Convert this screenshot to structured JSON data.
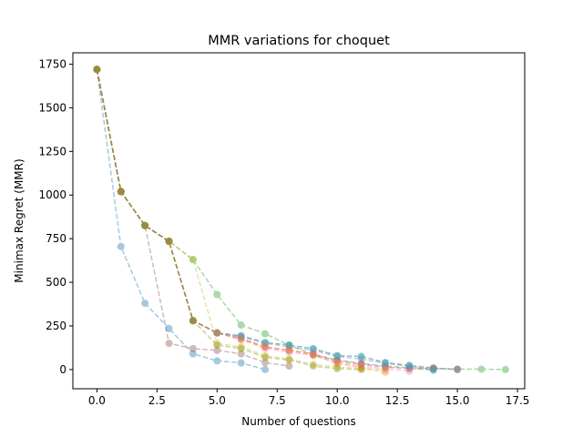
{
  "chart_data": {
    "type": "line",
    "title": "MMR variations for choquet",
    "xlabel": "Number of questions",
    "ylabel": "Minimax Regret (MMR)",
    "xlim": [
      -1,
      17.8
    ],
    "ylim": [
      -110,
      1815
    ],
    "xticks": [
      0.0,
      2.5,
      5.0,
      7.5,
      10.0,
      12.5,
      15.0,
      17.5
    ],
    "xtick_labels": [
      "0.0",
      "2.5",
      "5.0",
      "7.5",
      "10.0",
      "12.5",
      "15.0",
      "17.5"
    ],
    "yticks": [
      0,
      250,
      500,
      750,
      1000,
      1250,
      1500,
      1750
    ],
    "ytick_labels": [
      "0",
      "250",
      "500",
      "750",
      "1000",
      "1250",
      "1500",
      "1750"
    ],
    "grid": false,
    "line_style": "dashed",
    "marker": "circle",
    "alpha": 0.4,
    "series": [
      {
        "color": "#1f77b4",
        "x": [
          0,
          1,
          2,
          3,
          4,
          5,
          6,
          7
        ],
        "y": [
          1720,
          705,
          380,
          235,
          90,
          50,
          38,
          0
        ]
      },
      {
        "color": "#8c564b",
        "x": [
          0,
          1,
          2,
          3,
          4,
          5,
          6,
          7,
          8
        ],
        "y": [
          1720,
          1020,
          825,
          150,
          120,
          110,
          90,
          40,
          20
        ]
      },
      {
        "color": "#2ca02c",
        "x": [
          0,
          1,
          2,
          3,
          4,
          5,
          6,
          7,
          8,
          9,
          10,
          11,
          12,
          13,
          14,
          15,
          16,
          17
        ],
        "y": [
          1720,
          1020,
          825,
          735,
          630,
          430,
          255,
          205,
          140,
          85,
          55,
          35,
          20,
          10,
          5,
          3,
          2,
          0
        ]
      },
      {
        "color": "#bcbd22",
        "x": [
          0,
          1,
          2,
          3,
          4,
          5,
          6,
          7,
          8,
          9,
          10,
          11,
          12
        ],
        "y": [
          1720,
          1020,
          825,
          735,
          630,
          150,
          130,
          80,
          60,
          30,
          15,
          5,
          0
        ]
      },
      {
        "color": "#d62728",
        "x": [
          0,
          1,
          2,
          3,
          4,
          5,
          6,
          7,
          8,
          9,
          10,
          11,
          12,
          13,
          14
        ],
        "y": [
          1720,
          1020,
          825,
          735,
          280,
          210,
          180,
          130,
          110,
          90,
          50,
          30,
          15,
          5,
          0
        ]
      },
      {
        "color": "#9467bd",
        "x": [
          0,
          1,
          2,
          3,
          4,
          5,
          6,
          7,
          8,
          9,
          10,
          11,
          12,
          13,
          14,
          15
        ],
        "y": [
          1720,
          1020,
          825,
          735,
          280,
          210,
          190,
          150,
          130,
          110,
          75,
          60,
          35,
          20,
          8,
          0
        ]
      },
      {
        "color": "#e377c2",
        "x": [
          0,
          1,
          2,
          3,
          4,
          5,
          6,
          7,
          8,
          9,
          10,
          11,
          12,
          13
        ],
        "y": [
          1720,
          1020,
          825,
          735,
          280,
          210,
          175,
          120,
          100,
          80,
          40,
          20,
          5,
          -10
        ]
      },
      {
        "color": "#7f7f7f",
        "x": [
          0,
          1,
          2,
          3,
          4,
          5,
          6,
          7,
          8,
          9,
          10,
          11,
          12,
          13,
          14,
          15
        ],
        "y": [
          1720,
          1020,
          825,
          735,
          280,
          210,
          195,
          155,
          140,
          120,
          80,
          75,
          40,
          25,
          10,
          0
        ]
      },
      {
        "color": "#17becf",
        "x": [
          0,
          1,
          2,
          3,
          4,
          5,
          6,
          7,
          8,
          9,
          10,
          11,
          12,
          13,
          14
        ],
        "y": [
          1720,
          1020,
          825,
          735,
          280,
          210,
          190,
          155,
          140,
          120,
          80,
          75,
          40,
          20,
          -5
        ]
      },
      {
        "color": "#ff7f0e",
        "x": [
          0,
          1,
          2,
          3,
          4,
          5,
          6,
          7,
          8,
          9,
          10,
          11,
          12
        ],
        "y": [
          1720,
          1020,
          825,
          735,
          280,
          210,
          170,
          130,
          110,
          85,
          35,
          10,
          -15
        ]
      },
      {
        "color": "#8c8c00",
        "x": [
          0,
          1,
          2,
          3,
          4,
          5,
          6,
          7,
          8,
          9,
          10,
          11
        ],
        "y": [
          1720,
          1020,
          825,
          735,
          280,
          140,
          120,
          70,
          55,
          20,
          5,
          0
        ]
      }
    ]
  }
}
